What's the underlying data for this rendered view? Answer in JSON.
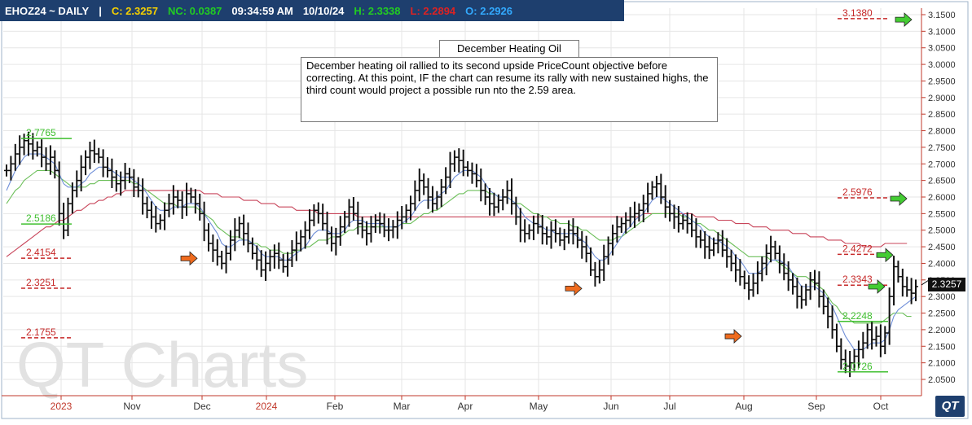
{
  "header": {
    "symbol": "EHOZ24 ~ DAILY",
    "sep": "|",
    "close": "C: 2.3257",
    "net_change": "NC: 0.0387",
    "time": "09:34:59 AM",
    "date": "10/10/24",
    "high": "H: 2.3338",
    "low": "L: 2.2894",
    "open": "O: 2.2926",
    "colors": {
      "bg": "#1e3f6e",
      "symbol": "#ffffff",
      "close": "#f5d000",
      "nc": "#22cc22",
      "time": "#ffffff",
      "high": "#22cc22",
      "low": "#dd2222",
      "open": "#33aaff"
    }
  },
  "annotation": {
    "title": "December Heating Oil",
    "body": "December heating oil rallied to its second upside PriceCount objective before correcting.  At this point, IF the chart can resume its rally with new sustained highs, the third count would project a possible run nto the 2.59 area."
  },
  "watermark": "QT Charts",
  "last_price_tag": "2.3257",
  "logo": "QT",
  "chart_data": {
    "type": "ohlc",
    "y_range": [
      2.02,
      3.17
    ],
    "y_ticks": [
      "3.1500",
      "3.1000",
      "3.0500",
      "3.0000",
      "2.9500",
      "2.9000",
      "2.8500",
      "2.8000",
      "2.7500",
      "2.7000",
      "2.6500",
      "2.6000",
      "2.5500",
      "2.5000",
      "2.4500",
      "2.4000",
      "2.3500",
      "2.3000",
      "2.2500",
      "2.2000",
      "2.1500",
      "2.1000",
      "2.0500"
    ],
    "x_labels": [
      {
        "label": "2023",
        "red": true,
        "pos": 75
      },
      {
        "label": "Nov",
        "red": false,
        "pos": 162
      },
      {
        "label": "Dec",
        "red": false,
        "pos": 248
      },
      {
        "label": "2024",
        "red": true,
        "pos": 327
      },
      {
        "label": "Feb",
        "red": false,
        "pos": 411
      },
      {
        "label": "Mar",
        "red": false,
        "pos": 493
      },
      {
        "label": "Apr",
        "red": false,
        "pos": 571
      },
      {
        "label": "May",
        "red": false,
        "pos": 661
      },
      {
        "label": "Jun",
        "red": false,
        "pos": 750
      },
      {
        "label": "Jul",
        "red": false,
        "pos": 822
      },
      {
        "label": "Aug",
        "red": false,
        "pos": 913
      },
      {
        "label": "Sep",
        "red": false,
        "pos": 1002
      },
      {
        "label": "Oct",
        "red": false,
        "pos": 1081
      }
    ],
    "price_levels": [
      {
        "value": "2.7765",
        "color": "green"
      },
      {
        "value": "2.5186",
        "color": "green"
      },
      {
        "value": "2.4154",
        "color": "red"
      },
      {
        "value": "2.3251",
        "color": "red"
      },
      {
        "value": "2.1755",
        "color": "red"
      },
      {
        "value": "3.1380",
        "color": "red"
      },
      {
        "value": "2.5976",
        "color": "red"
      },
      {
        "value": "2.4272",
        "color": "red"
      },
      {
        "value": "2.3343",
        "color": "red"
      },
      {
        "value": "2.2248",
        "color": "green"
      },
      {
        "value": "2.0726",
        "color": "green"
      }
    ],
    "arrows": [
      {
        "color": "orange",
        "price": 2.415
      },
      {
        "color": "orange",
        "price": 2.324
      },
      {
        "color": "orange",
        "price": 2.18
      },
      {
        "color": "green",
        "price": 3.135
      },
      {
        "color": "green",
        "price": 2.595
      },
      {
        "color": "green",
        "price": 2.425
      },
      {
        "color": "green",
        "price": 2.33
      }
    ],
    "last_close": 2.3257,
    "series": [
      {
        "name": "price",
        "values": [
          2.68,
          2.7,
          2.73,
          2.75,
          2.77,
          2.76,
          2.74,
          2.75,
          2.72,
          2.7,
          2.72,
          2.68,
          2.55,
          2.5,
          2.58,
          2.62,
          2.65,
          2.69,
          2.72,
          2.74,
          2.73,
          2.72,
          2.69,
          2.68,
          2.66,
          2.64,
          2.65,
          2.67,
          2.66,
          2.63,
          2.62,
          2.58,
          2.56,
          2.54,
          2.52,
          2.53,
          2.56,
          2.58,
          2.6,
          2.59,
          2.57,
          2.61,
          2.6,
          2.58,
          2.55,
          2.5,
          2.46,
          2.44,
          2.42,
          2.4,
          2.43,
          2.47,
          2.5,
          2.52,
          2.49,
          2.46,
          2.43,
          2.41,
          2.38,
          2.4,
          2.42,
          2.43,
          2.41,
          2.39,
          2.41,
          2.44,
          2.46,
          2.48,
          2.5,
          2.53,
          2.56,
          2.55,
          2.52,
          2.49,
          2.46,
          2.48,
          2.51,
          2.54,
          2.57,
          2.55,
          2.52,
          2.5,
          2.49,
          2.51,
          2.53,
          2.52,
          2.5,
          2.5,
          2.51,
          2.53,
          2.54,
          2.56,
          2.58,
          2.62,
          2.65,
          2.63,
          2.6,
          2.58,
          2.6,
          2.63,
          2.66,
          2.7,
          2.72,
          2.71,
          2.69,
          2.68,
          2.67,
          2.65,
          2.62,
          2.6,
          2.58,
          2.57,
          2.59,
          2.6,
          2.62,
          2.58,
          2.54,
          2.5,
          2.49,
          2.5,
          2.52,
          2.51,
          2.49,
          2.48,
          2.5,
          2.49,
          2.47,
          2.48,
          2.5,
          2.49,
          2.47,
          2.45,
          2.43,
          2.38,
          2.36,
          2.38,
          2.42,
          2.46,
          2.49,
          2.51,
          2.52,
          2.53,
          2.54,
          2.55,
          2.56,
          2.58,
          2.61,
          2.63,
          2.64,
          2.6,
          2.57,
          2.55,
          2.54,
          2.52,
          2.53,
          2.52,
          2.5,
          2.48,
          2.47,
          2.45,
          2.44,
          2.46,
          2.47,
          2.44,
          2.42,
          2.4,
          2.38,
          2.36,
          2.34,
          2.32,
          2.34,
          2.37,
          2.4,
          2.43,
          2.45,
          2.43,
          2.4,
          2.37,
          2.35,
          2.33,
          2.3,
          2.29,
          2.32,
          2.35,
          2.34,
          2.3,
          2.27,
          2.24,
          2.2,
          2.15,
          2.11,
          2.09,
          2.1,
          2.12,
          2.14,
          2.16,
          2.2,
          2.17,
          2.18,
          2.15,
          2.19,
          2.3,
          2.39,
          2.36,
          2.33,
          2.32,
          2.31,
          2.33
        ]
      },
      {
        "name": "short_ma_blue",
        "values": [
          2.62,
          2.65,
          2.68,
          2.7,
          2.72,
          2.73,
          2.73,
          2.73,
          2.73,
          2.72,
          2.71,
          2.7,
          2.67,
          2.64,
          2.63,
          2.63,
          2.63,
          2.64,
          2.65,
          2.67,
          2.68,
          2.69,
          2.69,
          2.69,
          2.68,
          2.67,
          2.66,
          2.66,
          2.66,
          2.65,
          2.64,
          2.63,
          2.61,
          2.59,
          2.57,
          2.56,
          2.56,
          2.56,
          2.57,
          2.57,
          2.57,
          2.58,
          2.58,
          2.58,
          2.57,
          2.55,
          2.53,
          2.51,
          2.49,
          2.46,
          2.45,
          2.45,
          2.46,
          2.47,
          2.47,
          2.47,
          2.46,
          2.45,
          2.43,
          2.42,
          2.42,
          2.42,
          2.42,
          2.41,
          2.41,
          2.42,
          2.43,
          2.44,
          2.45,
          2.47,
          2.49,
          2.5,
          2.5,
          2.5,
          2.49,
          2.49,
          2.49,
          2.5,
          2.52,
          2.53,
          2.53,
          2.53,
          2.52,
          2.52,
          2.52,
          2.52,
          2.51,
          2.51,
          2.51,
          2.51,
          2.52,
          2.53,
          2.54,
          2.56,
          2.58,
          2.59,
          2.59,
          2.59,
          2.6,
          2.61,
          2.62,
          2.64,
          2.66,
          2.67,
          2.68,
          2.68,
          2.68,
          2.67,
          2.66,
          2.64,
          2.62,
          2.61,
          2.6,
          2.6,
          2.6,
          2.59,
          2.58,
          2.56,
          2.54,
          2.53,
          2.52,
          2.52,
          2.51,
          2.5,
          2.5,
          2.49,
          2.49,
          2.49,
          2.49,
          2.49,
          2.48,
          2.47,
          2.46,
          2.44,
          2.42,
          2.41,
          2.41,
          2.42,
          2.44,
          2.46,
          2.48,
          2.5,
          2.51,
          2.53,
          2.54,
          2.55,
          2.57,
          2.59,
          2.6,
          2.6,
          2.59,
          2.58,
          2.57,
          2.56,
          2.55,
          2.54,
          2.53,
          2.52,
          2.51,
          2.49,
          2.48,
          2.47,
          2.47,
          2.46,
          2.45,
          2.44,
          2.42,
          2.41,
          2.39,
          2.37,
          2.37,
          2.37,
          2.38,
          2.39,
          2.41,
          2.41,
          2.41,
          2.4,
          2.39,
          2.37,
          2.35,
          2.33,
          2.33,
          2.33,
          2.33,
          2.32,
          2.31,
          2.29,
          2.27,
          2.24,
          2.21,
          2.18,
          2.16,
          2.14,
          2.14,
          2.14,
          2.15,
          2.16,
          2.16,
          2.16,
          2.17,
          2.2,
          2.24,
          2.26,
          2.27,
          2.28,
          2.29,
          2.3
        ]
      },
      {
        "name": "mid_ma_green",
        "values": [
          2.58,
          2.6,
          2.62,
          2.63,
          2.65,
          2.66,
          2.67,
          2.68,
          2.68,
          2.68,
          2.68,
          2.67,
          2.66,
          2.65,
          2.64,
          2.63,
          2.63,
          2.63,
          2.63,
          2.64,
          2.64,
          2.65,
          2.65,
          2.65,
          2.65,
          2.65,
          2.65,
          2.65,
          2.65,
          2.64,
          2.64,
          2.63,
          2.62,
          2.61,
          2.6,
          2.59,
          2.58,
          2.58,
          2.58,
          2.57,
          2.57,
          2.57,
          2.57,
          2.57,
          2.56,
          2.55,
          2.54,
          2.53,
          2.51,
          2.5,
          2.49,
          2.48,
          2.48,
          2.48,
          2.47,
          2.47,
          2.46,
          2.46,
          2.45,
          2.45,
          2.44,
          2.44,
          2.44,
          2.43,
          2.43,
          2.43,
          2.44,
          2.44,
          2.45,
          2.45,
          2.46,
          2.47,
          2.47,
          2.47,
          2.48,
          2.48,
          2.48,
          2.49,
          2.5,
          2.5,
          2.51,
          2.51,
          2.51,
          2.51,
          2.51,
          2.51,
          2.51,
          2.51,
          2.51,
          2.51,
          2.52,
          2.52,
          2.52,
          2.53,
          2.54,
          2.55,
          2.55,
          2.56,
          2.56,
          2.57,
          2.58,
          2.59,
          2.6,
          2.61,
          2.61,
          2.62,
          2.62,
          2.62,
          2.62,
          2.62,
          2.61,
          2.61,
          2.6,
          2.6,
          2.6,
          2.59,
          2.58,
          2.58,
          2.57,
          2.56,
          2.55,
          2.55,
          2.54,
          2.54,
          2.53,
          2.53,
          2.52,
          2.52,
          2.52,
          2.51,
          2.51,
          2.5,
          2.5,
          2.49,
          2.48,
          2.47,
          2.47,
          2.47,
          2.47,
          2.48,
          2.48,
          2.49,
          2.5,
          2.51,
          2.52,
          2.53,
          2.54,
          2.55,
          2.55,
          2.55,
          2.55,
          2.55,
          2.55,
          2.55,
          2.54,
          2.54,
          2.53,
          2.52,
          2.52,
          2.51,
          2.5,
          2.5,
          2.49,
          2.48,
          2.47,
          2.46,
          2.45,
          2.44,
          2.43,
          2.42,
          2.42,
          2.42,
          2.42,
          2.42,
          2.41,
          2.41,
          2.4,
          2.39,
          2.38,
          2.37,
          2.36,
          2.36,
          2.36,
          2.35,
          2.34,
          2.33,
          2.32,
          2.3,
          2.28,
          2.27,
          2.25,
          2.24,
          2.23,
          2.22,
          2.22,
          2.22,
          2.22,
          2.22,
          2.22,
          2.22,
          2.23,
          2.24,
          2.25,
          2.25,
          2.25,
          2.24,
          2.24
        ]
      },
      {
        "name": "long_ma_red",
        "values": [
          2.42,
          2.43,
          2.44,
          2.45,
          2.46,
          2.47,
          2.48,
          2.49,
          2.5,
          2.51,
          2.51,
          2.52,
          2.53,
          2.53,
          2.54,
          2.55,
          2.56,
          2.56,
          2.57,
          2.58,
          2.58,
          2.59,
          2.59,
          2.6,
          2.6,
          2.61,
          2.61,
          2.62,
          2.62,
          2.62,
          2.62,
          2.62,
          2.62,
          2.62,
          2.62,
          2.62,
          2.62,
          2.62,
          2.62,
          2.62,
          2.62,
          2.62,
          2.62,
          2.62,
          2.62,
          2.61,
          2.61,
          2.61,
          2.61,
          2.6,
          2.6,
          2.6,
          2.6,
          2.6,
          2.59,
          2.59,
          2.59,
          2.59,
          2.58,
          2.58,
          2.58,
          2.58,
          2.57,
          2.57,
          2.57,
          2.57,
          2.56,
          2.56,
          2.56,
          2.56,
          2.56,
          2.55,
          2.55,
          2.55,
          2.55,
          2.55,
          2.55,
          2.55,
          2.55,
          2.55,
          2.54,
          2.54,
          2.54,
          2.54,
          2.54,
          2.54,
          2.54,
          2.54,
          2.54,
          2.54,
          2.54,
          2.54,
          2.54,
          2.54,
          2.54,
          2.54,
          2.54,
          2.54,
          2.54,
          2.54,
          2.54,
          2.54,
          2.54,
          2.54,
          2.54,
          2.54,
          2.54,
          2.54,
          2.54,
          2.54,
          2.54,
          2.54,
          2.54,
          2.54,
          2.54,
          2.54,
          2.54,
          2.54,
          2.54,
          2.54,
          2.54,
          2.54,
          2.54,
          2.54,
          2.54,
          2.54,
          2.54,
          2.54,
          2.54,
          2.54,
          2.54,
          2.54,
          2.54,
          2.54,
          2.54,
          2.54,
          2.54,
          2.54,
          2.54,
          2.54,
          2.54,
          2.54,
          2.54,
          2.54,
          2.54,
          2.55,
          2.55,
          2.55,
          2.55,
          2.55,
          2.55,
          2.55,
          2.55,
          2.55,
          2.55,
          2.55,
          2.55,
          2.54,
          2.54,
          2.54,
          2.54,
          2.54,
          2.53,
          2.53,
          2.53,
          2.53,
          2.52,
          2.52,
          2.52,
          2.52,
          2.51,
          2.51,
          2.51,
          2.51,
          2.5,
          2.5,
          2.5,
          2.5,
          2.5,
          2.49,
          2.49,
          2.49,
          2.49,
          2.48,
          2.48,
          2.48,
          2.48,
          2.47,
          2.47,
          2.47,
          2.47,
          2.46,
          2.46,
          2.46,
          2.46,
          2.45,
          2.45,
          2.45,
          2.45,
          2.45,
          2.46,
          2.46,
          2.46,
          2.46,
          2.46,
          2.46
        ]
      }
    ]
  }
}
